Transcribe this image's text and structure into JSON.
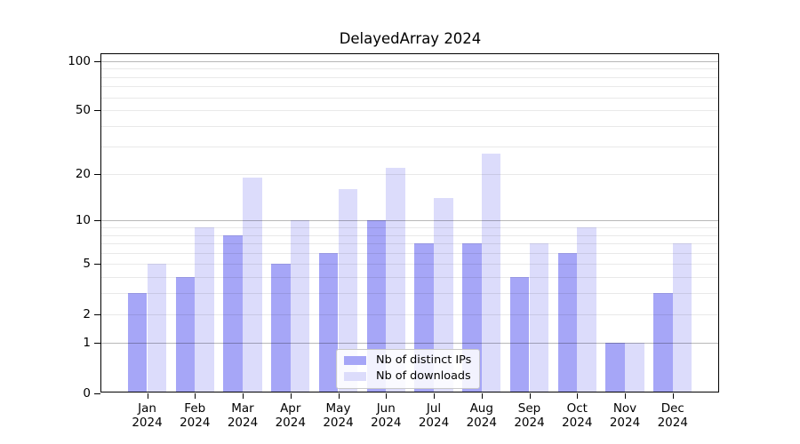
{
  "figure": {
    "background": "#ffffff",
    "text_color": "#000000",
    "major_grid_color": "#b8b8b8",
    "minor_grid_color": "#e9e9e9"
  },
  "chart_data": {
    "type": "bar",
    "title": "DelayedArray 2024",
    "categories": [
      "Jan 2024",
      "Feb 2024",
      "Mar 2024",
      "Apr 2024",
      "May 2024",
      "Jun 2024",
      "Jul 2024",
      "Aug 2024",
      "Sep 2024",
      "Oct 2024",
      "Nov 2024",
      "Dec 2024"
    ],
    "series": [
      {
        "name": "Nb of distinct IPs",
        "color": "#a6a6f7",
        "values": [
          3,
          4,
          8,
          5,
          6,
          10,
          7,
          7,
          4,
          6,
          1,
          3
        ]
      },
      {
        "name": "Nb of downloads",
        "color": "#dcdcfb",
        "values": [
          5,
          9,
          19,
          10,
          16,
          22,
          14,
          27,
          7,
          9,
          1,
          7
        ]
      }
    ],
    "xlabel": "",
    "ylabel": "",
    "yscale": "log1p",
    "yticks": [
      0,
      1,
      2,
      5,
      10,
      20,
      50,
      100
    ],
    "ylim": [
      0,
      112
    ],
    "grid": true,
    "legend_position": "lower center"
  }
}
